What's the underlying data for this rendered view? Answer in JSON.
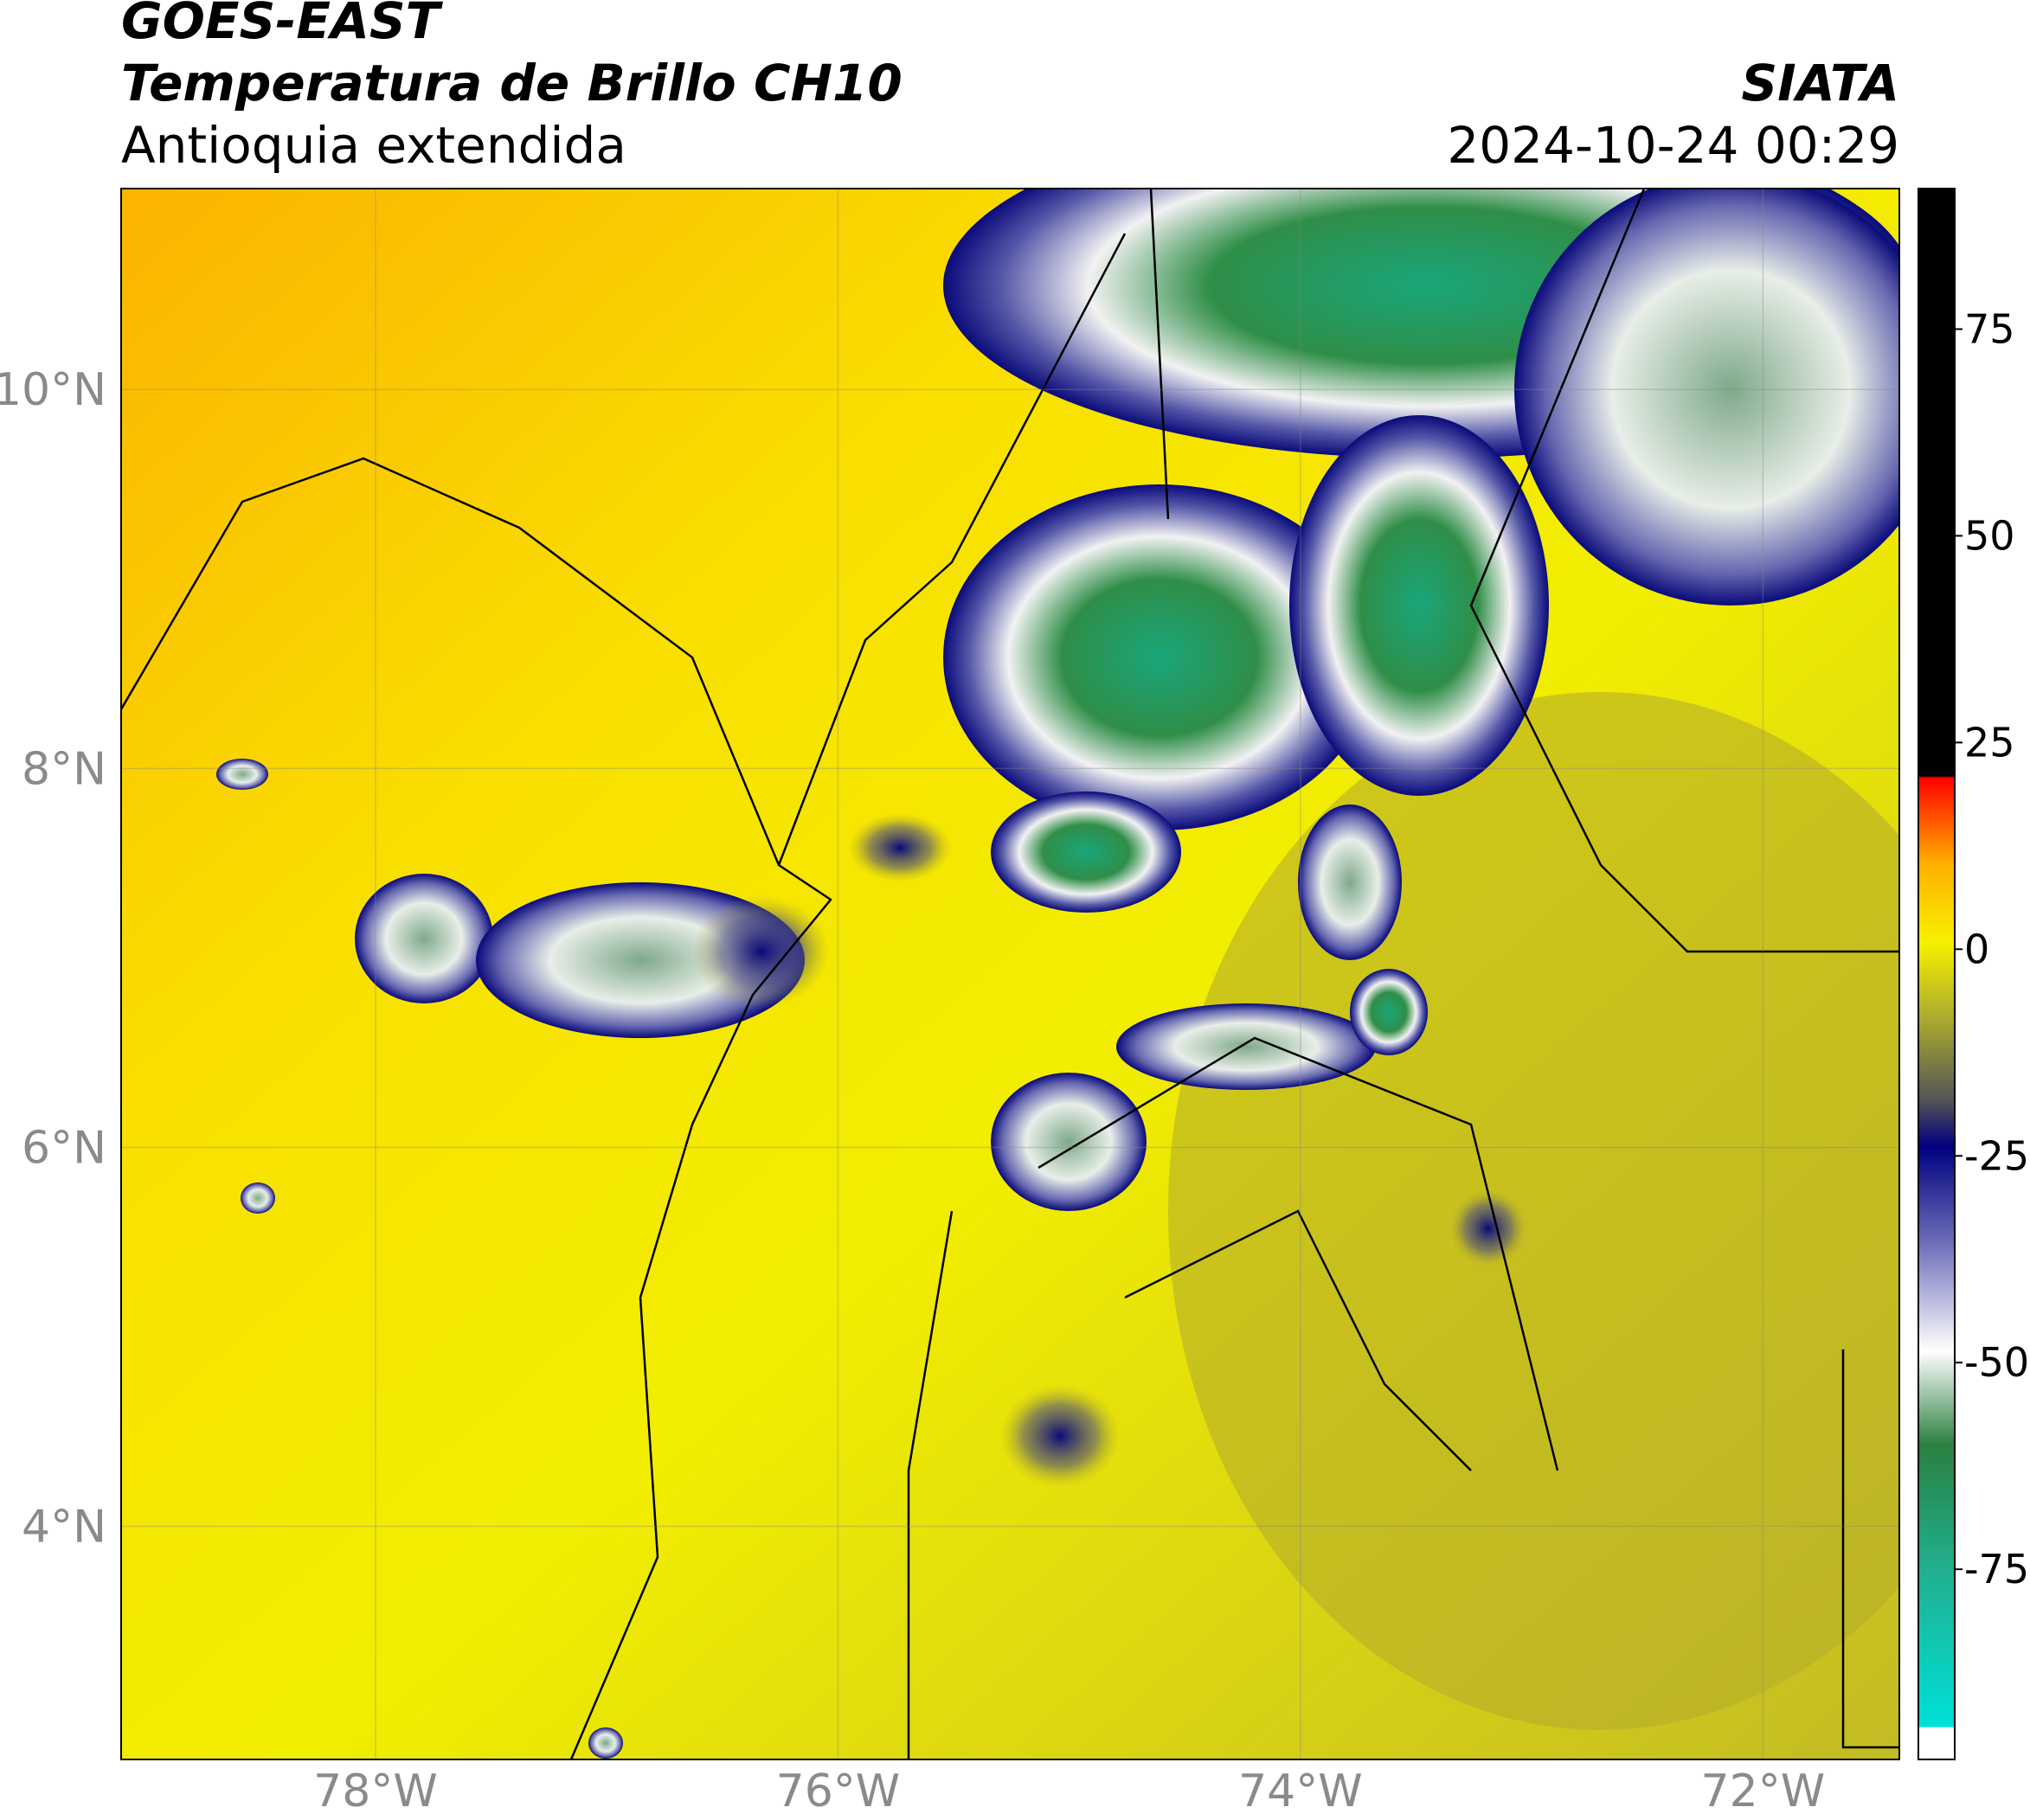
{
  "header": {
    "satellite": "GOES-EAST",
    "product": "Temperatura de Brillo CH10",
    "region": "Antioquia extendida",
    "agency": "SIATA",
    "datetime": "2024-10-24 00:29"
  },
  "map": {
    "xlim": [
      -79.1,
      -71.41
    ],
    "ylim": [
      2.77,
      11.06
    ],
    "xticks": [
      {
        "value": -78,
        "label": "78°W"
      },
      {
        "value": -76,
        "label": "76°W"
      },
      {
        "value": -74,
        "label": "74°W"
      },
      {
        "value": -72,
        "label": "72°W"
      }
    ],
    "yticks": [
      {
        "value": 4,
        "label": "4°N"
      },
      {
        "value": 6,
        "label": "6°N"
      },
      {
        "value": 8,
        "label": "8°N"
      },
      {
        "value": 10,
        "label": "10°N"
      }
    ],
    "grid": true
  },
  "colorbar": {
    "lim": [
      -98,
      92
    ],
    "ticks": [
      -75,
      -50,
      -25,
      0,
      25,
      50,
      75
    ]
  }
}
